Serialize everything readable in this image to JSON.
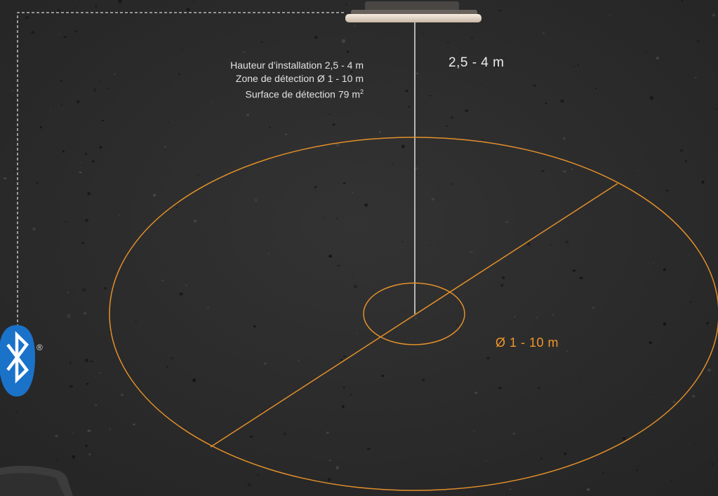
{
  "specs": {
    "installation_height": "Hauteur d’installation 2,5 - 4 m",
    "detection_zone": "Zone de détection Ø 1 - 10 m",
    "detection_surface_prefix": "Surface de détection 79 m",
    "detection_surface_sup": "2"
  },
  "dimensions": {
    "height_range": "2,5 - 4 m",
    "diameter_range": "Ø 1 - 10 m"
  },
  "badge": {
    "registered_mark": "®",
    "icon": "bluetooth-icon"
  },
  "colors": {
    "background": "#2b2b2b",
    "zone_stroke": "#e4902a",
    "diameter_text": "#f0962a",
    "bluetooth_blue": "#1a72c9",
    "text": "#e2e2e2"
  }
}
